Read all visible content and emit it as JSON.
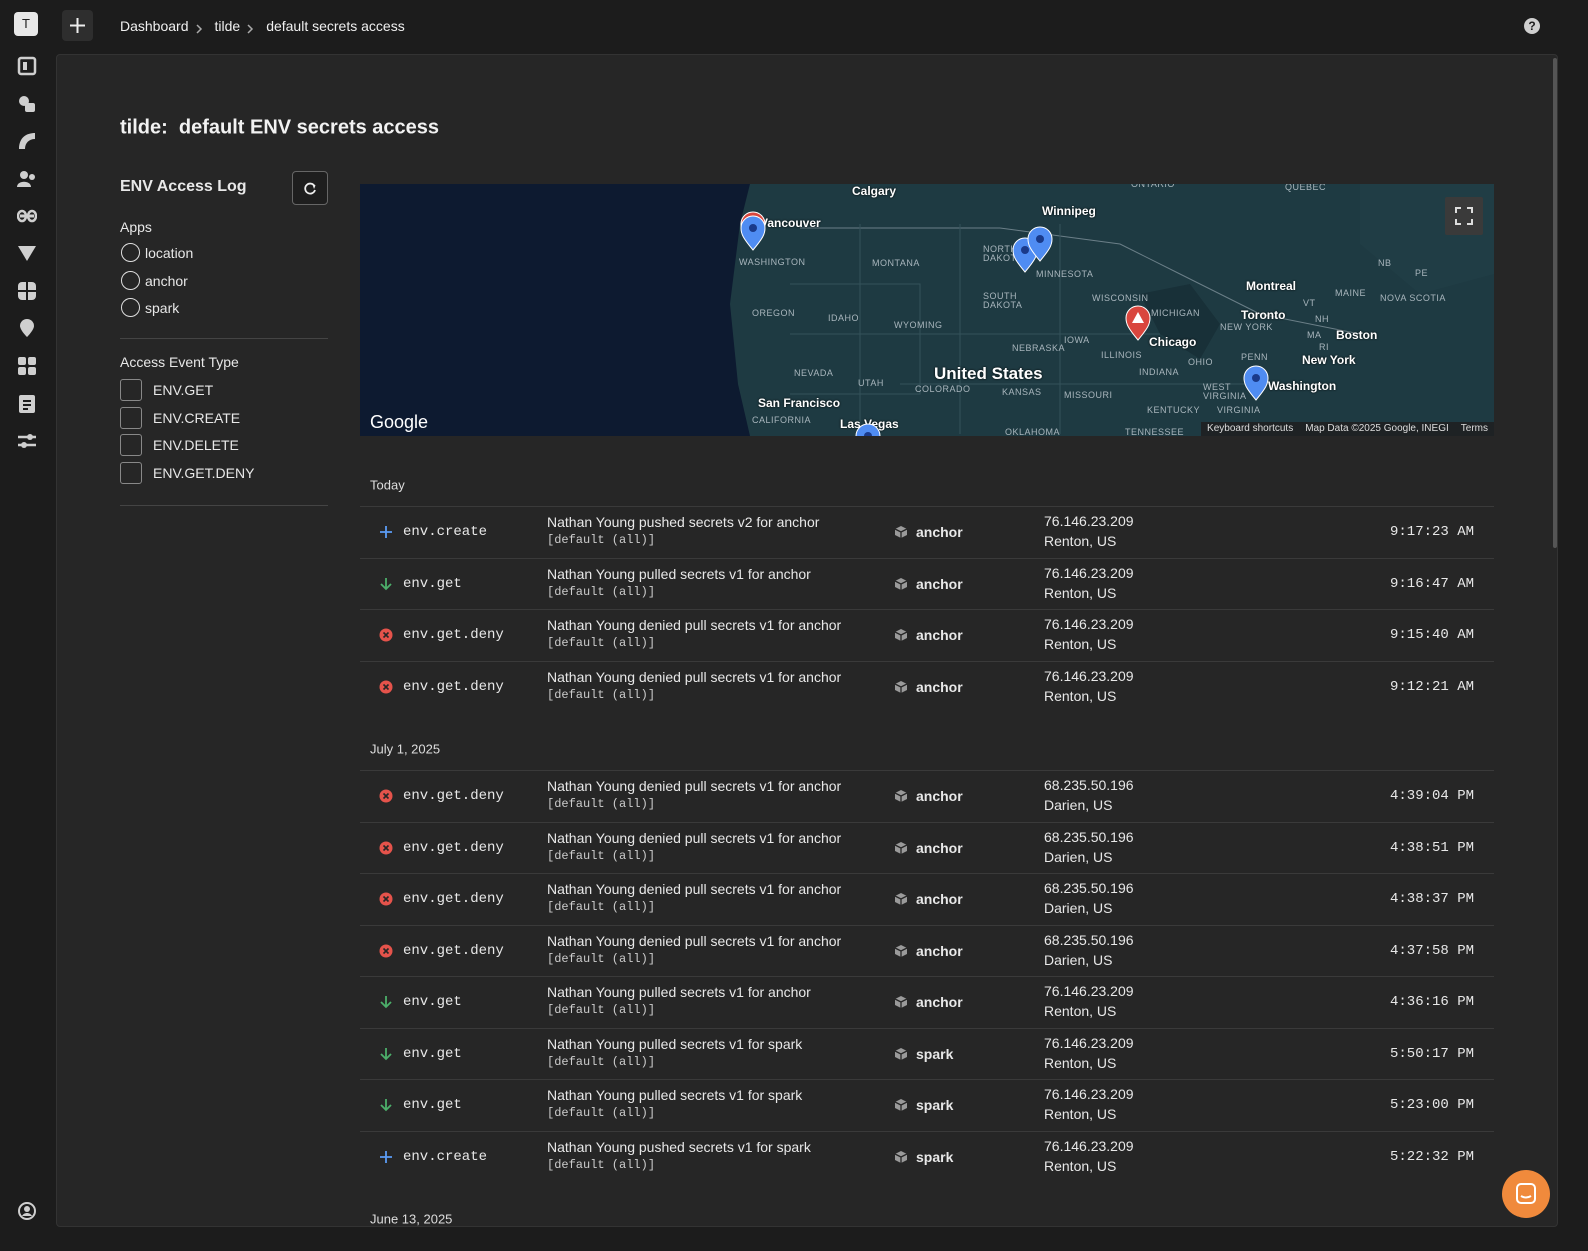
{
  "workspace": "T",
  "breadcrumb": [
    "Dashboard",
    "tilde",
    "default secrets access"
  ],
  "title": "tilde:  default ENV secrets access",
  "filters": {
    "title": "ENV Access Log",
    "apps": {
      "label": "Apps",
      "options": [
        "location",
        "anchor",
        "spark"
      ]
    },
    "event_types": {
      "label": "Access Event Type",
      "options": [
        "ENV.GET",
        "ENV.CREATE",
        "ENV.DELETE",
        "ENV.GET.DENY"
      ]
    }
  },
  "map": {
    "labels": [
      "Calgary",
      "Vancouver",
      "Winnipeg",
      "ONTARIO",
      "QUEBEC",
      "WASHINGTON",
      "MONTANA",
      "NORTH DAKOTA",
      "MINNESOTA",
      "OREGON",
      "IDAHO",
      "WYOMING",
      "SOUTH DAKOTA",
      "WISCONSIN",
      "MICHIGAN",
      "Montreal",
      "MAINE",
      "NOVA SCOTIA",
      "NB",
      "PE",
      "VT",
      "NH",
      "MA",
      "RI",
      "Toronto",
      "NEW YORK",
      "Boston",
      "Chicago",
      "IOWA",
      "NEBRASKA",
      "ILLINOIS",
      "OHIO",
      "PENN",
      "New York",
      "United States",
      "NEVADA",
      "UTAH",
      "COLORADO",
      "KANSAS",
      "MISSOURI",
      "INDIANA",
      "WEST VIRGINIA",
      "VIRGINIA",
      "Washington",
      "KENTUCKY",
      "San Francisco",
      "CALIFORNIA",
      "Las Vegas",
      "OKLAHOMA",
      "TENNESSEE"
    ],
    "brand": "Google",
    "footer": [
      "Keyboard shortcuts",
      "Map Data ©2025 Google, INEGI",
      "Terms"
    ]
  },
  "groups": [
    {
      "date": "Today",
      "events": [
        {
          "icon": "plus",
          "type": "env.create",
          "description": "Nathan Young pushed secrets v2 for anchor",
          "scope": "[default (all)]",
          "app": "anchor",
          "ip": "76.146.23.209",
          "location": "Renton, US",
          "time": "9:17:23 AM"
        },
        {
          "icon": "down",
          "type": "env.get",
          "description": "Nathan Young pulled secrets v1 for anchor",
          "scope": "[default (all)]",
          "app": "anchor",
          "ip": "76.146.23.209",
          "location": "Renton, US",
          "time": "9:16:47 AM"
        },
        {
          "icon": "deny",
          "type": "env.get.deny",
          "description": "Nathan Young denied pull secrets v1 for anchor",
          "scope": "[default (all)]",
          "app": "anchor",
          "ip": "76.146.23.209",
          "location": "Renton, US",
          "time": "9:15:40 AM"
        },
        {
          "icon": "deny",
          "type": "env.get.deny",
          "description": "Nathan Young denied pull secrets v1 for anchor",
          "scope": "[default (all)]",
          "app": "anchor",
          "ip": "76.146.23.209",
          "location": "Renton, US",
          "time": "9:12:21 AM"
        }
      ]
    },
    {
      "date": "July 1, 2025",
      "events": [
        {
          "icon": "deny",
          "type": "env.get.deny",
          "description": "Nathan Young denied pull secrets v1 for anchor",
          "scope": "[default (all)]",
          "app": "anchor",
          "ip": "68.235.50.196",
          "location": "Darien, US",
          "time": "4:39:04 PM"
        },
        {
          "icon": "deny",
          "type": "env.get.deny",
          "description": "Nathan Young denied pull secrets v1 for anchor",
          "scope": "[default (all)]",
          "app": "anchor",
          "ip": "68.235.50.196",
          "location": "Darien, US",
          "time": "4:38:51 PM"
        },
        {
          "icon": "deny",
          "type": "env.get.deny",
          "description": "Nathan Young denied pull secrets v1 for anchor",
          "scope": "[default (all)]",
          "app": "anchor",
          "ip": "68.235.50.196",
          "location": "Darien, US",
          "time": "4:38:37 PM"
        },
        {
          "icon": "deny",
          "type": "env.get.deny",
          "description": "Nathan Young denied pull secrets v1 for anchor",
          "scope": "[default (all)]",
          "app": "anchor",
          "ip": "68.235.50.196",
          "location": "Darien, US",
          "time": "4:37:58 PM"
        },
        {
          "icon": "down",
          "type": "env.get",
          "description": "Nathan Young pulled secrets v1 for anchor",
          "scope": "[default (all)]",
          "app": "anchor",
          "ip": "76.146.23.209",
          "location": "Renton, US",
          "time": "4:36:16 PM"
        },
        {
          "icon": "down",
          "type": "env.get",
          "description": "Nathan Young pulled secrets v1 for spark",
          "scope": "[default (all)]",
          "app": "spark",
          "ip": "76.146.23.209",
          "location": "Renton, US",
          "time": "5:50:17 PM"
        },
        {
          "icon": "down",
          "type": "env.get",
          "description": "Nathan Young pulled secrets v1 for spark",
          "scope": "[default (all)]",
          "app": "spark",
          "ip": "76.146.23.209",
          "location": "Renton, US",
          "time": "5:23:00 PM"
        },
        {
          "icon": "plus",
          "type": "env.create",
          "description": "Nathan Young pushed secrets v1 for spark",
          "scope": "[default (all)]",
          "app": "spark",
          "ip": "76.146.23.209",
          "location": "Renton, US",
          "time": "5:22:32 PM"
        }
      ]
    },
    {
      "date": "June 13, 2025",
      "events": []
    }
  ]
}
